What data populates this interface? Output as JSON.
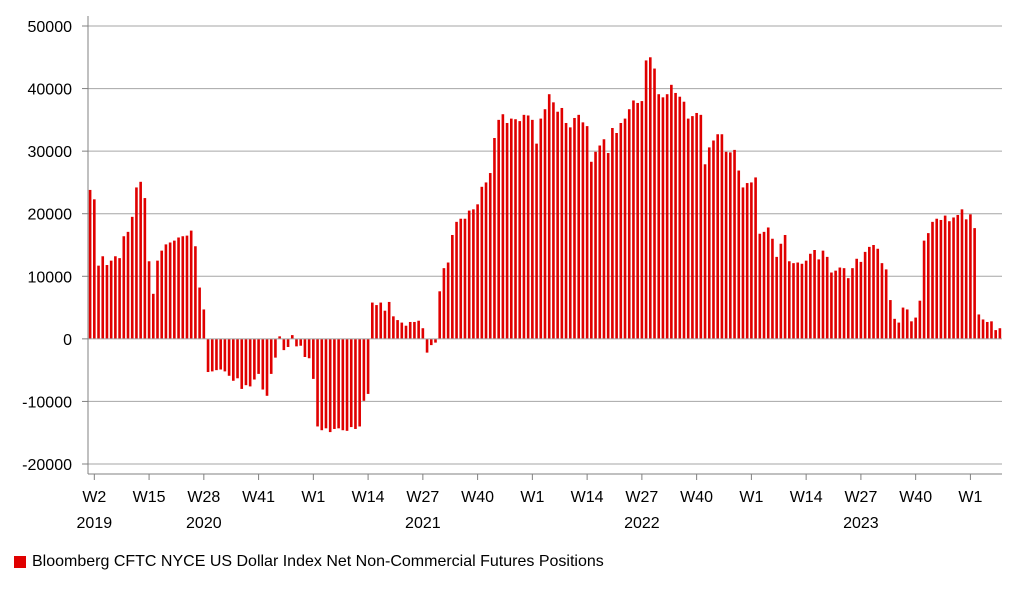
{
  "chart_data": {
    "type": "bar",
    "series": [
      {
        "name": "Bloomberg CFTC NYCE US Dollar Index Net Non-Commercial Futures Positions",
        "color": "#e00000",
        "values": [
          23800,
          22300,
          11700,
          13200,
          11800,
          12500,
          13200,
          12900,
          16400,
          17100,
          19500,
          24200,
          25100,
          22500,
          12400,
          7200,
          12500,
          14100,
          15100,
          15400,
          15700,
          16200,
          16400,
          16500,
          17300,
          14800,
          8200,
          4700,
          -5300,
          -5200,
          -5000,
          -4900,
          -5200,
          -5900,
          -6700,
          -6300,
          -8000,
          -7400,
          -7600,
          -6500,
          -5600,
          -8100,
          -9100,
          -5600,
          -3000,
          400,
          -1800,
          -1300,
          600,
          -1200,
          -1100,
          -2900,
          -3100,
          -6400,
          -14000,
          -14600,
          -14300,
          -14900,
          -14400,
          -14300,
          -14600,
          -14700,
          -14100,
          -14400,
          -14000,
          -9900,
          -8800,
          5800,
          5400,
          5800,
          4500,
          5900,
          3600,
          3000,
          2600,
          2100,
          2700,
          2700,
          2900,
          1700,
          -2200,
          -1000,
          -600,
          7600,
          11300,
          12200,
          16600,
          18700,
          19200,
          19200,
          20500,
          20700,
          21500,
          24300,
          25000,
          26500,
          32100,
          35000,
          35900,
          34500,
          35200,
          35100,
          34800,
          35800,
          35700,
          35000,
          31200,
          35200,
          36700,
          39100,
          37800,
          36300,
          36900,
          34500,
          33800,
          35300,
          35800,
          34600,
          34000,
          28300,
          29900,
          30900,
          31900,
          29700,
          33700,
          32900,
          34500,
          35200,
          36700,
          38100,
          37700,
          38000,
          44500,
          45000,
          43200,
          39100,
          38600,
          39100,
          40600,
          39300,
          38700,
          37900,
          35200,
          35600,
          36100,
          35800,
          27900,
          30600,
          31700,
          32700,
          32700,
          29900,
          29800,
          30200,
          26900,
          24200,
          24900,
          25000,
          25800,
          16800,
          17100,
          17800,
          16000,
          13100,
          15200,
          16600,
          12400,
          12100,
          12200,
          12000,
          12500,
          13600,
          14200,
          12700,
          14100,
          13100,
          10600,
          10900,
          11400,
          11300,
          9700,
          11300,
          12800,
          12300,
          13900,
          14700,
          15000,
          14400,
          12100,
          11100,
          6200,
          3200,
          2600,
          5000,
          4700,
          2800,
          3400,
          6100,
          15700,
          16900,
          18700,
          19200,
          19000,
          19700,
          18800,
          19400,
          19800,
          20700,
          19100,
          19900,
          17700,
          3900,
          3100,
          2700,
          2800,
          1400,
          1700
        ]
      }
    ],
    "ylim": [
      -20000,
      50000
    ],
    "yticks": [
      -20000,
      -10000,
      0,
      10000,
      20000,
      30000,
      40000,
      50000
    ],
    "ytick_labels": [
      "-20000",
      "-10000",
      "0",
      "10000",
      "20000",
      "30000",
      "40000",
      "50000"
    ],
    "xtick_labels": [
      {
        "week": "W2",
        "year": "2019",
        "index": 1
      },
      {
        "week": "W15",
        "year": "",
        "index": 14
      },
      {
        "week": "W28",
        "year": "2020",
        "index": 27
      },
      {
        "week": "W41",
        "year": "",
        "index": 40
      },
      {
        "week": "W1",
        "year": "",
        "index": 53
      },
      {
        "week": "W14",
        "year": "",
        "index": 66
      },
      {
        "week": "W27",
        "year": "2021",
        "index": 79
      },
      {
        "week": "W40",
        "year": "",
        "index": 92
      },
      {
        "week": "W1",
        "year": "",
        "index": 105
      },
      {
        "week": "W14",
        "year": "",
        "index": 118
      },
      {
        "week": "W27",
        "year": "2022",
        "index": 131
      },
      {
        "week": "W40",
        "year": "",
        "index": 144
      },
      {
        "week": "W1",
        "year": "",
        "index": 157
      },
      {
        "week": "W14",
        "year": "",
        "index": 170
      },
      {
        "week": "W27",
        "year": "2023",
        "index": 183
      },
      {
        "week": "W40",
        "year": "",
        "index": 196
      },
      {
        "week": "W1",
        "year": "",
        "index": 209
      }
    ],
    "grid": true,
    "legend_position": "bottom-left"
  }
}
